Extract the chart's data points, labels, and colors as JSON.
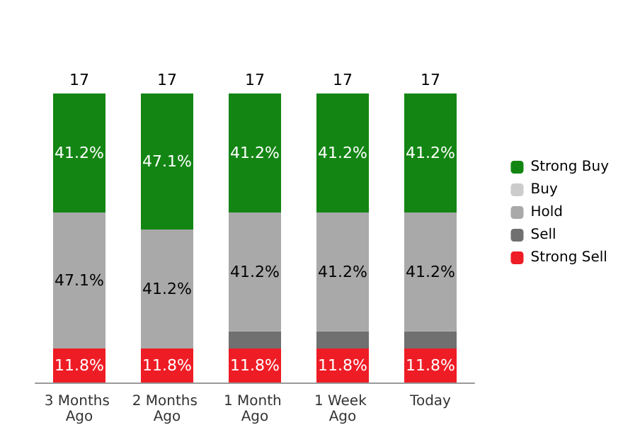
{
  "chart_data": {
    "type": "bar",
    "stacked": true,
    "categories": [
      "3 Months Ago",
      "2 Months Ago",
      "1 Month Ago",
      "1 Week Ago",
      "Today"
    ],
    "series": [
      {
        "name": "Strong Sell",
        "color": "#ee1c25",
        "values": [
          11.8,
          11.8,
          11.8,
          11.8,
          11.8
        ],
        "value_labels": [
          "11.8%",
          "11.8%",
          "11.8%",
          "11.8%",
          "11.8%"
        ]
      },
      {
        "name": "Sell",
        "color": "#707070",
        "values": [
          0,
          0,
          5.9,
          5.9,
          5.9
        ],
        "value_labels": [
          null,
          null,
          null,
          null,
          null
        ]
      },
      {
        "name": "Hold",
        "color": "#a9a9a9",
        "values": [
          47.1,
          41.2,
          41.2,
          41.2,
          41.2
        ],
        "value_labels": [
          "47.1%",
          "41.2%",
          "41.2%",
          "41.2%",
          "41.2%"
        ]
      },
      {
        "name": "Buy",
        "color": "#cccccc",
        "values": [
          0,
          0,
          0,
          0,
          0
        ]
      },
      {
        "name": "Strong Buy",
        "color": "#138513",
        "values": [
          41.2,
          47.1,
          41.2,
          41.2,
          41.2
        ],
        "value_labels": [
          "41.2%",
          "47.1%",
          "41.2%",
          "41.2%",
          "41.2%"
        ]
      }
    ],
    "annotations": [
      "17",
      "17",
      "17",
      "17",
      "17"
    ],
    "legend": "right"
  }
}
